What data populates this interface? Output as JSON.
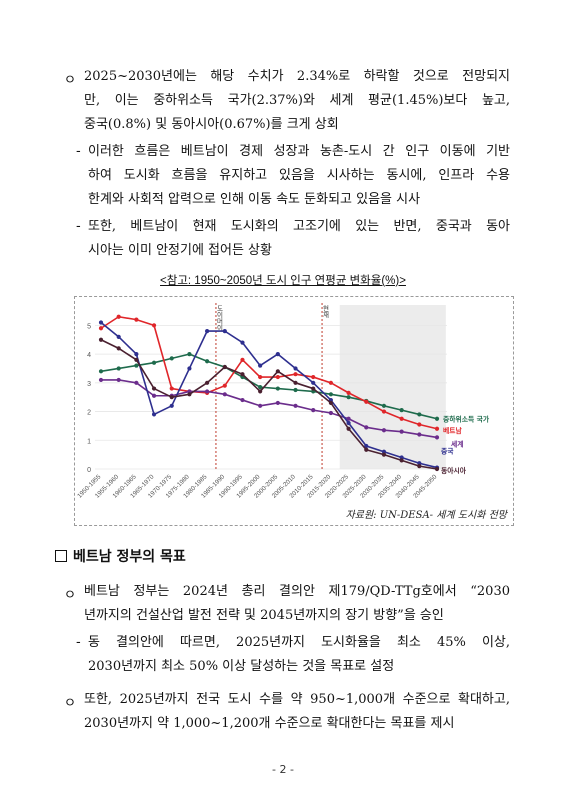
{
  "bullets": {
    "b1": {
      "marker": "ㅇ",
      "lines": [
        "2025~2030년에는 해당 수치가 2.34%로 하락할 것으로 전망되지",
        "만, 이는 중하위소득 국가(2.37%)와 세계 평균(1.45%)보다 높고,",
        "중국(0.8%) 및 동아시아(0.67%)를 크게 상회"
      ]
    },
    "d1": {
      "marker": "-",
      "lines": [
        "이러한 흐름은 베트남이 경제 성장과 농촌-도시 간 인구 이동에 기반",
        "하여 도시화 흐름을 유지하고 있음을 시사하는 동시에, 인프라 수용",
        "한계와 사회적 압력으로 인해 이동 속도 둔화되고 있음을 시사"
      ]
    },
    "d2": {
      "marker": "-",
      "lines": [
        "또한, 베트남이 현재 도시화의 고조기에 있는 반면, 중국과 동아",
        "시아는 이미 안정기에 접어든 상황"
      ]
    },
    "b2": {
      "marker": "ㅇ",
      "lines": [
        "베트남 정부는 2024년 총리 결의안 제179/QD-TTg호에서 “2030",
        "년까지의 건설산업 발전 전략 및 2045년까지의 장기 방향”을 승인"
      ]
    },
    "d3": {
      "marker": "-",
      "lines": [
        "동 결의안에 따르면, 2025년까지 도시화율을 최소 45% 이상,",
        "2030년까지 최소 50% 이상 달성하는 것을 목표로 설정"
      ]
    },
    "b3": {
      "marker": "ㅇ",
      "lines": [
        "또한, 2025년까지 전국 도시 수를 약 950~1,000개 수준으로 확대하고,",
        "2030년까지 약 1,000~1,200개 수준으로 확대한다는 목표를 제시"
      ]
    }
  },
  "caption": "<참고: 1950~2050년 도시 인구 연평균 변화율(%)>",
  "source": "자료원: UN-DESA- 세계 도시화 전망",
  "section_heading": "베트남 정부의 목표",
  "page_number": "- 2 -",
  "chart_data": {
    "type": "line",
    "categories": [
      "1950-1955",
      "1955-1960",
      "1960-1965",
      "1965-1970",
      "1970-1975",
      "1975-1980",
      "1980-1985",
      "1985-1990",
      "1990-1995",
      "1995-2000",
      "2000-2005",
      "2005-2010",
      "2010-2015",
      "2015-2020",
      "2020-2025",
      "2025-2030",
      "2030-2035",
      "2035-2040",
      "2040-2045",
      "2045-2050"
    ],
    "ylim": [
      0,
      5.5
    ],
    "yticks": [
      "0",
      "1",
      "2",
      "3",
      "4",
      "5"
    ],
    "annotations": [
      "도이머이",
      "현재"
    ],
    "series": [
      {
        "name": "중하위소득 국가",
        "color": "#1e6b4c",
        "values": [
          3.4,
          3.5,
          3.6,
          3.7,
          3.85,
          4.0,
          3.75,
          3.55,
          3.2,
          2.85,
          2.8,
          2.75,
          2.7,
          2.6,
          2.5,
          2.37,
          2.2,
          2.05,
          1.9,
          1.75
        ]
      },
      {
        "name": "베트남",
        "color": "#e0262a",
        "values": [
          4.9,
          5.3,
          5.2,
          5.0,
          2.8,
          2.7,
          2.65,
          2.9,
          3.8,
          3.2,
          3.2,
          3.3,
          3.2,
          3.0,
          2.65,
          2.34,
          2.0,
          1.75,
          1.55,
          1.4
        ]
      },
      {
        "name": "세계",
        "color": "#6b2d8c",
        "values": [
          3.1,
          3.1,
          3.0,
          2.55,
          2.55,
          2.7,
          2.7,
          2.6,
          2.4,
          2.2,
          2.3,
          2.2,
          2.05,
          1.95,
          1.75,
          1.45,
          1.35,
          1.3,
          1.2,
          1.1
        ]
      },
      {
        "name": "중국",
        "color": "#2e2f8f",
        "values": [
          5.1,
          4.6,
          4.0,
          1.9,
          2.2,
          3.5,
          4.8,
          4.8,
          4.4,
          3.6,
          4.0,
          3.5,
          3.0,
          2.4,
          1.6,
          0.8,
          0.6,
          0.4,
          0.2,
          0.05
        ]
      },
      {
        "name": "동아시아",
        "color": "#4a2030",
        "values": [
          4.5,
          4.2,
          3.8,
          2.8,
          2.5,
          2.6,
          3.0,
          3.55,
          3.3,
          2.7,
          3.4,
          3.0,
          2.8,
          2.3,
          1.4,
          0.67,
          0.5,
          0.3,
          0.1,
          0.0
        ]
      }
    ]
  }
}
